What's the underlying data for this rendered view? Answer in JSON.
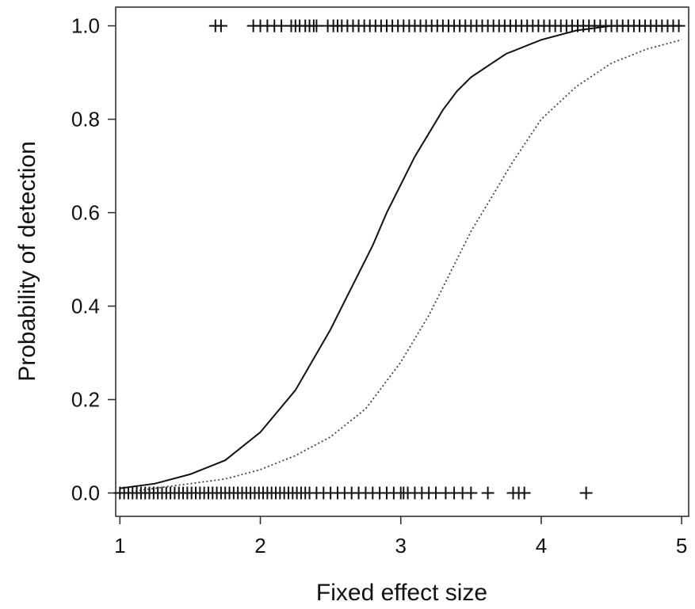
{
  "chart_data": {
    "type": "scatter",
    "title": "",
    "xlabel": "Fixed effect size",
    "ylabel": "Probability of detection",
    "xlim": [
      0.97,
      5.05
    ],
    "ylim": [
      -0.05,
      1.04
    ],
    "xticks": [
      1,
      2,
      3,
      4,
      5
    ],
    "xtick_labels": [
      "1",
      "2",
      "3",
      "4",
      "5"
    ],
    "yticks": [
      0.0,
      0.2,
      0.4,
      0.6,
      0.8,
      1.0
    ],
    "ytick_labels": [
      "0.0",
      "0.2",
      "0.4",
      "0.6",
      "0.8",
      "1.0"
    ],
    "grid": false,
    "legend": "none",
    "series": [
      {
        "kind": "points",
        "marker": "plus",
        "y": 1,
        "x": [
          1.68,
          1.72,
          1.95,
          2.0,
          2.05,
          2.1,
          2.15,
          2.22,
          2.25,
          2.28,
          2.32,
          2.35,
          2.38,
          2.4,
          2.48,
          2.52,
          2.55,
          2.58,
          2.62,
          2.66,
          2.7,
          2.74,
          2.78,
          2.82,
          2.86,
          2.9,
          2.94,
          2.98,
          3.02,
          3.06,
          3.1,
          3.14,
          3.18,
          3.22,
          3.26,
          3.3,
          3.34,
          3.38,
          3.42,
          3.46,
          3.5,
          3.54,
          3.58,
          3.62,
          3.66,
          3.7,
          3.74,
          3.78,
          3.82,
          3.86,
          3.9,
          3.94,
          3.98,
          4.02,
          4.06,
          4.1,
          4.14,
          4.18,
          4.22,
          4.26,
          4.3,
          4.34,
          4.38,
          4.42,
          4.46,
          4.5,
          4.54,
          4.58,
          4.62,
          4.66,
          4.7,
          4.74,
          4.78,
          4.82,
          4.86,
          4.9,
          4.94,
          4.98
        ]
      },
      {
        "kind": "points",
        "marker": "plus",
        "y": 0,
        "x": [
          1.0,
          1.03,
          1.06,
          1.09,
          1.12,
          1.15,
          1.18,
          1.21,
          1.24,
          1.27,
          1.3,
          1.33,
          1.36,
          1.39,
          1.42,
          1.45,
          1.48,
          1.51,
          1.54,
          1.57,
          1.6,
          1.63,
          1.66,
          1.69,
          1.72,
          1.75,
          1.78,
          1.81,
          1.84,
          1.87,
          1.9,
          1.93,
          1.96,
          1.99,
          2.02,
          2.05,
          2.08,
          2.11,
          2.14,
          2.17,
          2.2,
          2.23,
          2.26,
          2.29,
          2.32,
          2.35,
          2.4,
          2.45,
          2.5,
          2.55,
          2.6,
          2.65,
          2.7,
          2.75,
          2.8,
          2.85,
          2.9,
          2.95,
          3.0,
          3.02,
          3.05,
          3.1,
          3.15,
          3.2,
          3.25,
          3.32,
          3.38,
          3.44,
          3.5,
          3.62,
          3.8,
          3.84,
          3.88,
          4.32
        ]
      },
      {
        "kind": "curve",
        "style": "solid",
        "x": [
          1.0,
          1.25,
          1.5,
          1.75,
          2.0,
          2.25,
          2.5,
          2.6,
          2.7,
          2.8,
          2.9,
          3.0,
          3.1,
          3.2,
          3.3,
          3.4,
          3.5,
          3.75,
          4.0,
          4.25,
          4.5,
          4.75,
          5.0
        ],
        "y": [
          0.01,
          0.02,
          0.04,
          0.07,
          0.13,
          0.22,
          0.35,
          0.41,
          0.47,
          0.53,
          0.6,
          0.66,
          0.72,
          0.77,
          0.82,
          0.86,
          0.89,
          0.94,
          0.97,
          0.99,
          1.0,
          1.0,
          1.0
        ]
      },
      {
        "kind": "curve",
        "style": "dotted",
        "x": [
          1.0,
          1.25,
          1.5,
          1.75,
          2.0,
          2.25,
          2.5,
          2.75,
          3.0,
          3.1,
          3.2,
          3.3,
          3.4,
          3.5,
          3.6,
          3.7,
          3.8,
          4.0,
          4.25,
          4.5,
          4.75,
          5.0
        ],
        "y": [
          0.0,
          0.01,
          0.02,
          0.03,
          0.05,
          0.08,
          0.12,
          0.18,
          0.28,
          0.33,
          0.38,
          0.44,
          0.5,
          0.56,
          0.61,
          0.66,
          0.71,
          0.8,
          0.87,
          0.92,
          0.95,
          0.97
        ]
      }
    ]
  }
}
